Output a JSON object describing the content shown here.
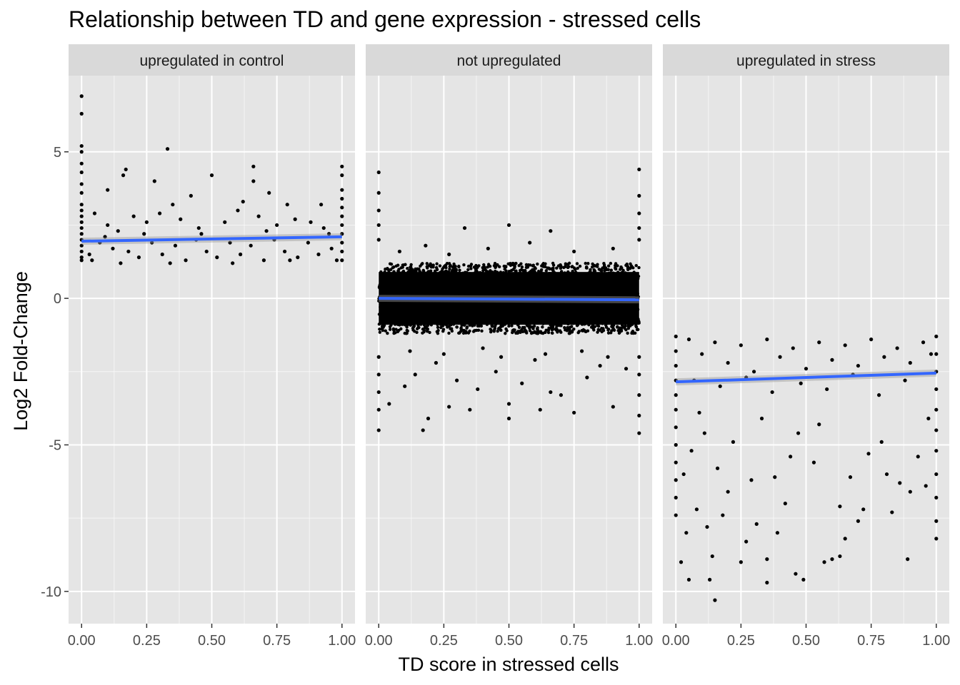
{
  "chart_data": {
    "type": "scatter",
    "title": "Relationship between TD and gene expression - stressed cells",
    "xlabel": "TD score in stressed cells",
    "ylabel": "Log2 Fold-Change",
    "xlim": [
      -0.05,
      1.05
    ],
    "ylim": [
      -11.1,
      7.6
    ],
    "x_ticks": [
      0,
      0.25,
      0.5,
      0.75,
      1
    ],
    "x_tick_labels": [
      "0.00",
      "0.25",
      "0.50",
      "0.75",
      "1.00"
    ],
    "y_ticks": [
      -10,
      -5,
      0,
      5
    ],
    "y_tick_labels": [
      "-10",
      "-5",
      "0",
      "5"
    ],
    "grid": true,
    "colors": {
      "panel_background": "#e5e5e5",
      "grid_line": "#ffffff",
      "strip_background": "#d9d9d9",
      "point": "#000000",
      "trend_line": "#3366ff",
      "confidence_band": "#999999"
    },
    "facets": [
      {
        "label": "upregulated in control",
        "trend": {
          "x": [
            0,
            1
          ],
          "y": [
            1.95,
            2.1
          ]
        },
        "points": [
          [
            0,
            6.9
          ],
          [
            0,
            6.3
          ],
          [
            0,
            5.2
          ],
          [
            0,
            5.0
          ],
          [
            0,
            4.6
          ],
          [
            0,
            4.3
          ],
          [
            0,
            3.9
          ],
          [
            0,
            3.6
          ],
          [
            0,
            3.2
          ],
          [
            0,
            3.0
          ],
          [
            0,
            2.8
          ],
          [
            0,
            2.6
          ],
          [
            0,
            2.4
          ],
          [
            0,
            2.2
          ],
          [
            0,
            2.0
          ],
          [
            0,
            1.8
          ],
          [
            0,
            1.6
          ],
          [
            0,
            1.4
          ],
          [
            0,
            1.3
          ],
          [
            0.33,
            5.1
          ],
          [
            0.17,
            4.4
          ],
          [
            0.16,
            4.2
          ],
          [
            0.28,
            4.0
          ],
          [
            0.5,
            4.2
          ],
          [
            0.66,
            4.5
          ],
          [
            0.66,
            4.0
          ],
          [
            0.72,
            3.6
          ],
          [
            0.42,
            3.5
          ],
          [
            0.62,
            3.3
          ],
          [
            0.1,
            3.7
          ],
          [
            0.35,
            3.2
          ],
          [
            0.79,
            3.2
          ],
          [
            0.92,
            3.2
          ],
          [
            0.05,
            2.9
          ],
          [
            0.1,
            2.5
          ],
          [
            0.14,
            2.3
          ],
          [
            0.2,
            2.8
          ],
          [
            0.25,
            2.6
          ],
          [
            0.3,
            2.9
          ],
          [
            0.38,
            2.7
          ],
          [
            0.45,
            2.4
          ],
          [
            0.55,
            2.6
          ],
          [
            0.6,
            3.0
          ],
          [
            0.68,
            2.8
          ],
          [
            0.75,
            2.5
          ],
          [
            0.82,
            2.7
          ],
          [
            0.88,
            2.6
          ],
          [
            0.95,
            2.2
          ],
          [
            0.03,
            1.5
          ],
          [
            0.07,
            1.9
          ],
          [
            0.12,
            1.7
          ],
          [
            0.18,
            1.6
          ],
          [
            0.22,
            1.4
          ],
          [
            0.27,
            1.9
          ],
          [
            0.31,
            1.5
          ],
          [
            0.36,
            1.8
          ],
          [
            0.4,
            1.3
          ],
          [
            0.44,
            2.0
          ],
          [
            0.48,
            1.6
          ],
          [
            0.52,
            1.4
          ],
          [
            0.57,
            1.9
          ],
          [
            0.61,
            1.5
          ],
          [
            0.65,
            1.8
          ],
          [
            0.7,
            1.3
          ],
          [
            0.74,
            2.0
          ],
          [
            0.78,
            1.6
          ],
          [
            0.83,
            1.4
          ],
          [
            0.87,
            1.9
          ],
          [
            0.91,
            1.5
          ],
          [
            0.96,
            1.7
          ],
          [
            0.04,
            1.3
          ],
          [
            0.09,
            2.1
          ],
          [
            0.15,
            1.2
          ],
          [
            0.24,
            2.2
          ],
          [
            0.34,
            1.2
          ],
          [
            0.46,
            2.2
          ],
          [
            0.58,
            1.2
          ],
          [
            0.71,
            2.3
          ],
          [
            0.8,
            1.3
          ],
          [
            0.93,
            2.4
          ],
          [
            0.98,
            1.3
          ],
          [
            1,
            4.5
          ],
          [
            1,
            4.2
          ],
          [
            1,
            3.7
          ],
          [
            1,
            3.4
          ],
          [
            1,
            3.1
          ],
          [
            1,
            2.8
          ],
          [
            1,
            2.5
          ],
          [
            1,
            2.2
          ],
          [
            1,
            1.9
          ],
          [
            1,
            1.6
          ],
          [
            1,
            1.3
          ]
        ]
      },
      {
        "label": "not upregulated",
        "trend": {
          "x": [
            0,
            1
          ],
          "y": [
            0.0,
            -0.05
          ]
        },
        "band": {
          "lo": -1.2,
          "hi": 1.2
        },
        "points": [
          [
            0,
            4.3
          ],
          [
            0,
            3.6
          ],
          [
            0,
            3.0
          ],
          [
            0,
            2.5
          ],
          [
            0,
            2.0
          ],
          [
            0,
            -2.0
          ],
          [
            0,
            -2.6
          ],
          [
            0,
            -3.2
          ],
          [
            0,
            -3.8
          ],
          [
            0,
            -4.5
          ],
          [
            0.33,
            2.4
          ],
          [
            0.5,
            2.5
          ],
          [
            0.66,
            2.3
          ],
          [
            0.18,
            1.8
          ],
          [
            0.42,
            1.7
          ],
          [
            0.58,
            1.9
          ],
          [
            0.75,
            1.6
          ],
          [
            0.9,
            1.7
          ],
          [
            0.08,
            1.6
          ],
          [
            0.27,
            1.5
          ],
          [
            0.17,
            -4.5
          ],
          [
            0.19,
            -4.1
          ],
          [
            0.27,
            -3.7
          ],
          [
            0.35,
            -3.8
          ],
          [
            0.5,
            -4.1
          ],
          [
            0.5,
            -3.6
          ],
          [
            0.62,
            -3.8
          ],
          [
            0.66,
            -3.2
          ],
          [
            0.75,
            -3.9
          ],
          [
            0.9,
            -3.7
          ],
          [
            0.04,
            -3.6
          ],
          [
            0.1,
            -3.0
          ],
          [
            0.14,
            -2.6
          ],
          [
            0.22,
            -2.2
          ],
          [
            0.3,
            -2.8
          ],
          [
            0.38,
            -3.1
          ],
          [
            0.45,
            -2.5
          ],
          [
            0.55,
            -2.9
          ],
          [
            0.6,
            -2.1
          ],
          [
            0.7,
            -3.3
          ],
          [
            0.8,
            -2.7
          ],
          [
            0.85,
            -2.3
          ],
          [
            0.95,
            -2.4
          ],
          [
            0.12,
            -1.8
          ],
          [
            0.25,
            -1.9
          ],
          [
            0.4,
            -1.7
          ],
          [
            0.47,
            -2.0
          ],
          [
            0.64,
            -1.9
          ],
          [
            0.78,
            -1.8
          ],
          [
            0.88,
            -2.0
          ],
          [
            1,
            4.4
          ],
          [
            1,
            3.5
          ],
          [
            1,
            2.9
          ],
          [
            1,
            2.4
          ],
          [
            1,
            2.0
          ],
          [
            1,
            -2.0
          ],
          [
            1,
            -2.6
          ],
          [
            1,
            -3.3
          ],
          [
            1,
            -4.0
          ],
          [
            1,
            -4.6
          ]
        ]
      },
      {
        "label": "upregulated in stress",
        "trend": {
          "x": [
            0,
            1
          ],
          "y": [
            -2.85,
            -2.55
          ]
        },
        "points": [
          [
            0,
            -1.3
          ],
          [
            0,
            -1.8
          ],
          [
            0,
            -2.3
          ],
          [
            0,
            -2.8
          ],
          [
            0,
            -3.3
          ],
          [
            0,
            -3.8
          ],
          [
            0,
            -4.4
          ],
          [
            0,
            -5.0
          ],
          [
            0,
            -5.6
          ],
          [
            0,
            -6.2
          ],
          [
            0,
            -6.8
          ],
          [
            0,
            -7.4
          ],
          [
            0.02,
            -9.0
          ],
          [
            0.05,
            -9.6
          ],
          [
            0.04,
            -8.0
          ],
          [
            0.08,
            -7.2
          ],
          [
            0.03,
            -6.0
          ],
          [
            0.06,
            -5.2
          ],
          [
            0.11,
            -4.6
          ],
          [
            0.14,
            -8.8
          ],
          [
            0.13,
            -9.6
          ],
          [
            0.15,
            -10.3
          ],
          [
            0.12,
            -7.8
          ],
          [
            0.18,
            -7.4
          ],
          [
            0.2,
            -6.6
          ],
          [
            0.16,
            -5.8
          ],
          [
            0.22,
            -4.9
          ],
          [
            0.25,
            -9.0
          ],
          [
            0.27,
            -8.3
          ],
          [
            0.31,
            -7.7
          ],
          [
            0.29,
            -6.2
          ],
          [
            0.35,
            -9.7
          ],
          [
            0.35,
            -8.9
          ],
          [
            0.38,
            -6.1
          ],
          [
            0.42,
            -7.0
          ],
          [
            0.46,
            -9.4
          ],
          [
            0.49,
            -9.6
          ],
          [
            0.39,
            -8.0
          ],
          [
            0.44,
            -5.4
          ],
          [
            0.47,
            -4.6
          ],
          [
            0.53,
            -5.6
          ],
          [
            0.57,
            -9.0
          ],
          [
            0.6,
            -8.9
          ],
          [
            0.63,
            -8.8
          ],
          [
            0.63,
            -7.1
          ],
          [
            0.65,
            -8.2
          ],
          [
            0.7,
            -7.6
          ],
          [
            0.72,
            -7.2
          ],
          [
            0.67,
            -6.1
          ],
          [
            0.74,
            -5.3
          ],
          [
            0.81,
            -6.0
          ],
          [
            0.83,
            -7.3
          ],
          [
            0.86,
            -6.3
          ],
          [
            0.89,
            -8.9
          ],
          [
            0.9,
            -6.6
          ],
          [
            0.93,
            -5.4
          ],
          [
            0.96,
            -6.4
          ],
          [
            0.97,
            -4.1
          ],
          [
            0.79,
            -4.9
          ],
          [
            0.55,
            -4.3
          ],
          [
            0.33,
            -4.1
          ],
          [
            0.09,
            -3.9
          ],
          [
            0.05,
            -1.4
          ],
          [
            0.1,
            -1.9
          ],
          [
            0.15,
            -1.5
          ],
          [
            0.2,
            -2.2
          ],
          [
            0.25,
            -1.6
          ],
          [
            0.3,
            -2.5
          ],
          [
            0.35,
            -1.4
          ],
          [
            0.4,
            -2.0
          ],
          [
            0.45,
            -1.7
          ],
          [
            0.5,
            -2.4
          ],
          [
            0.55,
            -1.5
          ],
          [
            0.6,
            -2.1
          ],
          [
            0.65,
            -1.6
          ],
          [
            0.7,
            -2.3
          ],
          [
            0.75,
            -1.4
          ],
          [
            0.8,
            -2.0
          ],
          [
            0.85,
            -1.7
          ],
          [
            0.9,
            -2.2
          ],
          [
            0.95,
            -1.5
          ],
          [
            0.98,
            -1.9
          ],
          [
            0.07,
            -2.8
          ],
          [
            0.17,
            -3.0
          ],
          [
            0.27,
            -2.7
          ],
          [
            0.37,
            -3.2
          ],
          [
            0.48,
            -2.9
          ],
          [
            0.58,
            -3.1
          ],
          [
            0.68,
            -2.6
          ],
          [
            0.78,
            -3.3
          ],
          [
            0.88,
            -2.8
          ],
          [
            1,
            -1.3
          ],
          [
            1,
            -1.9
          ],
          [
            1,
            -2.5
          ],
          [
            1,
            -3.1
          ],
          [
            1,
            -3.8
          ],
          [
            1,
            -4.5
          ],
          [
            1,
            -5.2
          ],
          [
            1,
            -6.0
          ],
          [
            1,
            -6.8
          ],
          [
            1,
            -7.6
          ],
          [
            1,
            -8.2
          ]
        ]
      }
    ]
  }
}
